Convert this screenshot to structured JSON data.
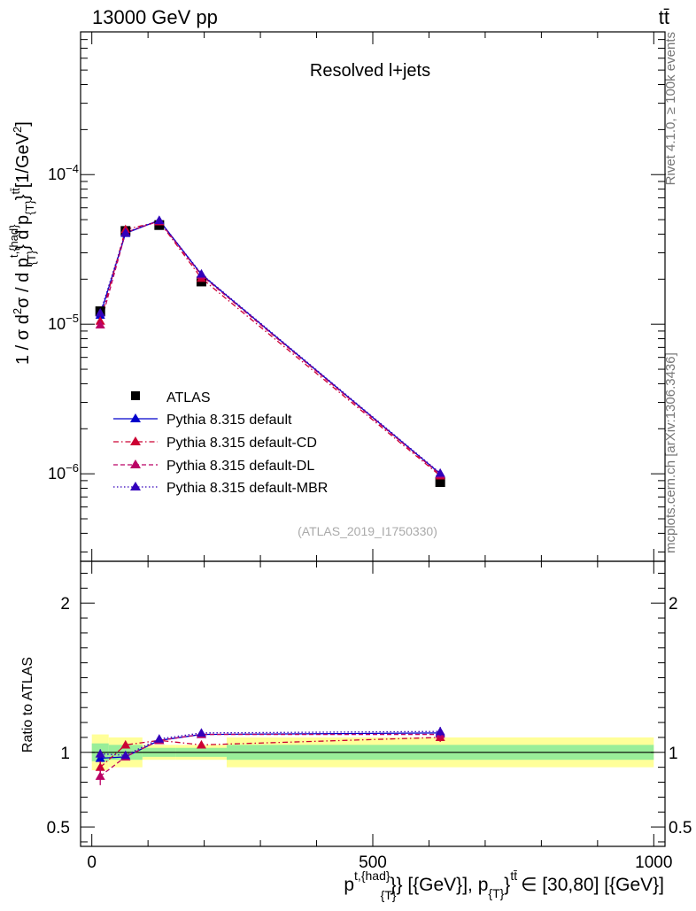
{
  "header": {
    "energy_label": "13000 GeV pp",
    "process_label": "tt̄"
  },
  "side_labels": {
    "rivet": "Rivet 4.1.0, ≥ 100k events",
    "mcplots": "mcplots.cern.ch [arXiv:1306.3436]"
  },
  "chart_data": [
    {
      "panel": "main",
      "type": "line",
      "title": "Resolved l+jets",
      "watermark": "(ATLAS_2019_I1750330)",
      "ylabel": "1 / σ d²σ / d p^{t,{had}}_{T} d p_{T}^{tt̄} [1/GeV²]",
      "ylabel_parts": {
        "p1": "1 / σ d",
        "sup1": "2",
        "p2": "σ / d p",
        "sup2": "t,{had}",
        "sub2": "{T}",
        "p3": "} d p",
        "sub3": "{T}",
        "p4": "}",
        "sup4": "tt̄",
        "p5": "[1/GeV",
        "sup5": "2",
        "p6": "]"
      },
      "yscale": "log",
      "xlim": [
        -20,
        1020
      ],
      "ylim": [
        2.6e-07,
        0.0009
      ],
      "y_ticks": [
        {
          "value": 0.0001,
          "base": "10",
          "exp": "−4"
        },
        {
          "value": 1e-05,
          "base": "10",
          "exp": "−5"
        },
        {
          "value": 1e-06,
          "base": "10",
          "exp": "−6"
        }
      ],
      "legend_position": "lower-left",
      "series": [
        {
          "name": "ATLAS",
          "style": "data",
          "color": "#000000",
          "x": [
            15,
            60,
            120,
            195,
            620
          ],
          "y": [
            1.22e-05,
            4.2e-05,
            4.6e-05,
            1.93e-05,
            8.8e-07
          ]
        },
        {
          "name": "Pythia 8.315 default",
          "style": "solid",
          "color": "#0000cc",
          "x": [
            15,
            60,
            120,
            195,
            620
          ],
          "y": [
            1.15e-05,
            4.05e-05,
            4.95e-05,
            2.15e-05,
            1e-06
          ]
        },
        {
          "name": "Pythia 8.315 default-CD",
          "style": "dashdot",
          "color": "#cc0033",
          "x": [
            15,
            60,
            120,
            195,
            620
          ],
          "y": [
            1.05e-05,
            4.3e-05,
            4.85e-05,
            2.03e-05,
            9.7e-07
          ]
        },
        {
          "name": "Pythia 8.315 default-DL",
          "style": "dashed",
          "color": "#bb0066",
          "x": [
            15,
            60,
            120,
            195,
            620
          ],
          "y": [
            9.9e-06,
            4.1e-05,
            4.9e-05,
            2.12e-05,
            9.9e-07
          ]
        },
        {
          "name": "Pythia 8.315 default-MBR",
          "style": "dotted",
          "color": "#3300bb",
          "x": [
            15,
            60,
            120,
            195,
            620
          ],
          "y": [
            1.19e-05,
            4.1e-05,
            4.95e-05,
            2.17e-05,
            1.01e-06
          ]
        }
      ]
    },
    {
      "panel": "ratio",
      "type": "line",
      "ylabel": "Ratio to ATLAS",
      "xlabel": "p^{t,{had}}_{T} [{GeV}], p_{T}^{tt̄} ∈ [30,80] [{GeV}]",
      "xlabel_parts": {
        "p1": "p",
        "sup1": "t,{had}",
        "p2": "}",
        "sub2": "{T}",
        "p3": "} [{GeV}], p",
        "sub3": "{T}",
        "p4": "}",
        "sup4": "tt̄",
        "p5": "∈ [30,80] [{GeV}]"
      },
      "xlim": [
        -20,
        1020
      ],
      "ylim": [
        0.37,
        2.28
      ],
      "x_ticks": [
        {
          "value": 0,
          "label": "0"
        },
        {
          "value": 500,
          "label": "500"
        },
        {
          "value": 1000,
          "label": "1000"
        }
      ],
      "y_ticks": [
        {
          "value": 0.5,
          "label": "0.5"
        },
        {
          "value": 1,
          "label": "1"
        },
        {
          "value": 2,
          "label": "2"
        }
      ],
      "bins": [
        {
          "lo": 0,
          "hi": 30,
          "green": 0.06,
          "yellow": 0.12
        },
        {
          "lo": 30,
          "hi": 90,
          "green": 0.05,
          "yellow": 0.1
        },
        {
          "lo": 90,
          "hi": 150,
          "green": 0.03,
          "yellow": 0.05
        },
        {
          "lo": 150,
          "hi": 240,
          "green": 0.03,
          "yellow": 0.05
        },
        {
          "lo": 240,
          "hi": 1000,
          "green": 0.05,
          "yellow": 0.1
        }
      ],
      "series": [
        {
          "name": "Pythia 8.315 default",
          "color": "#0000cc",
          "style": "solid",
          "x": [
            15,
            60,
            120,
            195,
            620
          ],
          "y": [
            0.96,
            0.97,
            1.08,
            1.12,
            1.13
          ],
          "err": [
            0.03,
            0.02,
            0.02,
            0.02,
            0.03
          ]
        },
        {
          "name": "Pythia 8.315 default-CD",
          "color": "#cc0033",
          "style": "dashdot",
          "x": [
            15,
            60,
            120,
            195,
            620
          ],
          "y": [
            0.9,
            1.05,
            1.08,
            1.05,
            1.1
          ],
          "err": [
            0.04,
            0.02,
            0.02,
            0.02,
            0.03
          ]
        },
        {
          "name": "Pythia 8.315 default-DL",
          "color": "#bb0066",
          "style": "dashed",
          "x": [
            15,
            60,
            120,
            195,
            620
          ],
          "y": [
            0.84,
            0.97,
            1.08,
            1.12,
            1.12
          ],
          "err": [
            0.06,
            0.02,
            0.02,
            0.02,
            0.03
          ]
        },
        {
          "name": "Pythia 8.315 default-MBR",
          "color": "#3300bb",
          "style": "dotted",
          "x": [
            15,
            60,
            120,
            195,
            620
          ],
          "y": [
            0.99,
            0.98,
            1.09,
            1.13,
            1.14
          ],
          "err": [
            0.03,
            0.02,
            0.02,
            0.02,
            0.03
          ]
        }
      ]
    }
  ]
}
